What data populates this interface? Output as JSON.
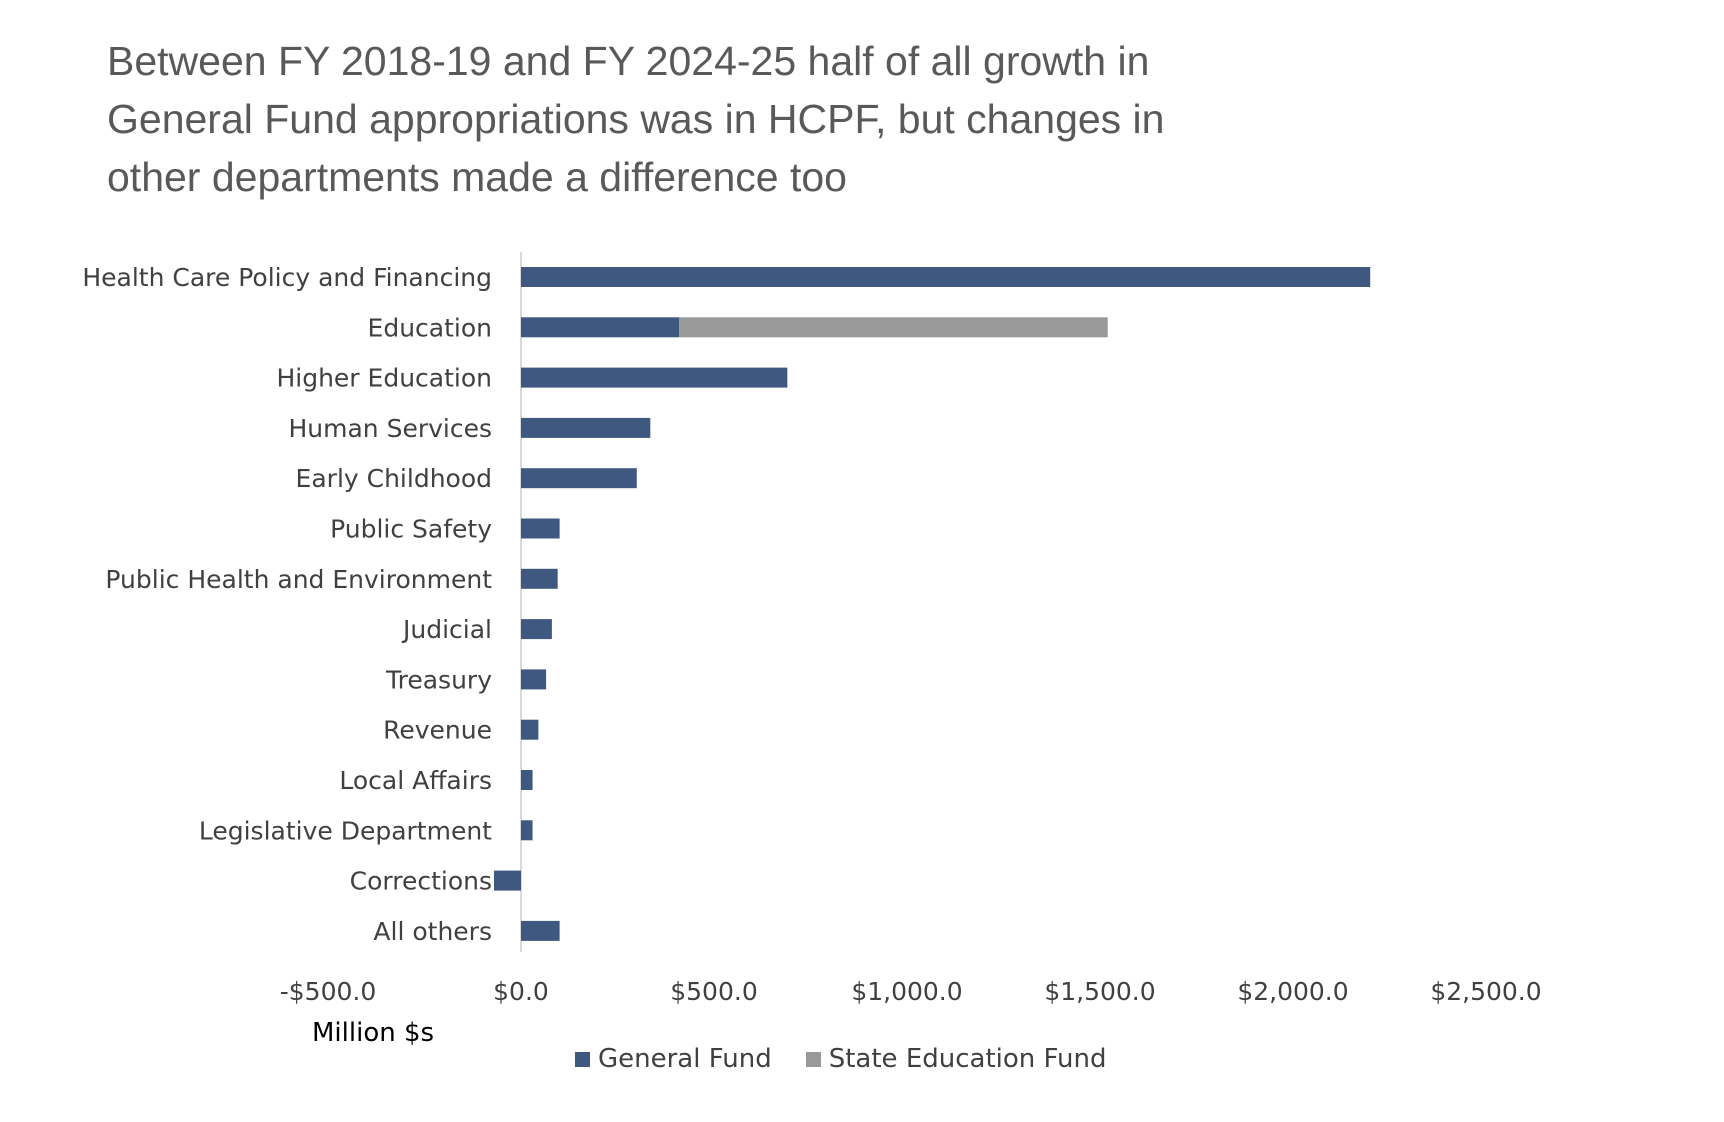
{
  "title_lines": [
    "Between FY 2018-19 and FY 2024-25 half of all growth in",
    "General Fund appropriations was in HCPF, but changes in",
    "other departments made a difference too"
  ],
  "colors": {
    "general_fund": "#3f587f",
    "state_education_fund": "#999999",
    "axis": "#d9d9d9"
  },
  "chart_data": {
    "type": "bar",
    "orientation": "horizontal",
    "stacked": true,
    "title": "Between FY 2018-19 and FY 2024-25 half of all growth in General Fund appropriations was in HCPF, but changes in other departments made a difference too",
    "xlabel": "Million $s",
    "ylabel": "",
    "xlim": [
      -500,
      2500
    ],
    "tick_values": [
      -500,
      0,
      500,
      1000,
      1500,
      2000,
      2500
    ],
    "tick_labels": [
      "-$500.0",
      "$0.0",
      "$500.0",
      "$1,000.0",
      "$1,500.0",
      "$2,000.0",
      "$2,500.0"
    ],
    "grid": false,
    "legend_position": "bottom",
    "categories": [
      "Health Care Policy and Financing",
      "Education",
      "Higher Education",
      "Human Services",
      "Early Childhood",
      "Public Safety",
      "Public Health and Environment",
      "Judicial",
      "Treasury",
      "Revenue",
      "Local Affairs",
      "Legislative Department",
      "Corrections",
      "All others"
    ],
    "series": [
      {
        "name": "General Fund",
        "values": [
          2200,
          410,
          690,
          335,
          300,
          100,
          95,
          80,
          65,
          45,
          30,
          30,
          -70,
          100
        ]
      },
      {
        "name": "State Education Fund",
        "values": [
          0,
          1110,
          0,
          0,
          0,
          0,
          0,
          0,
          0,
          0,
          0,
          0,
          0,
          0
        ]
      }
    ]
  }
}
